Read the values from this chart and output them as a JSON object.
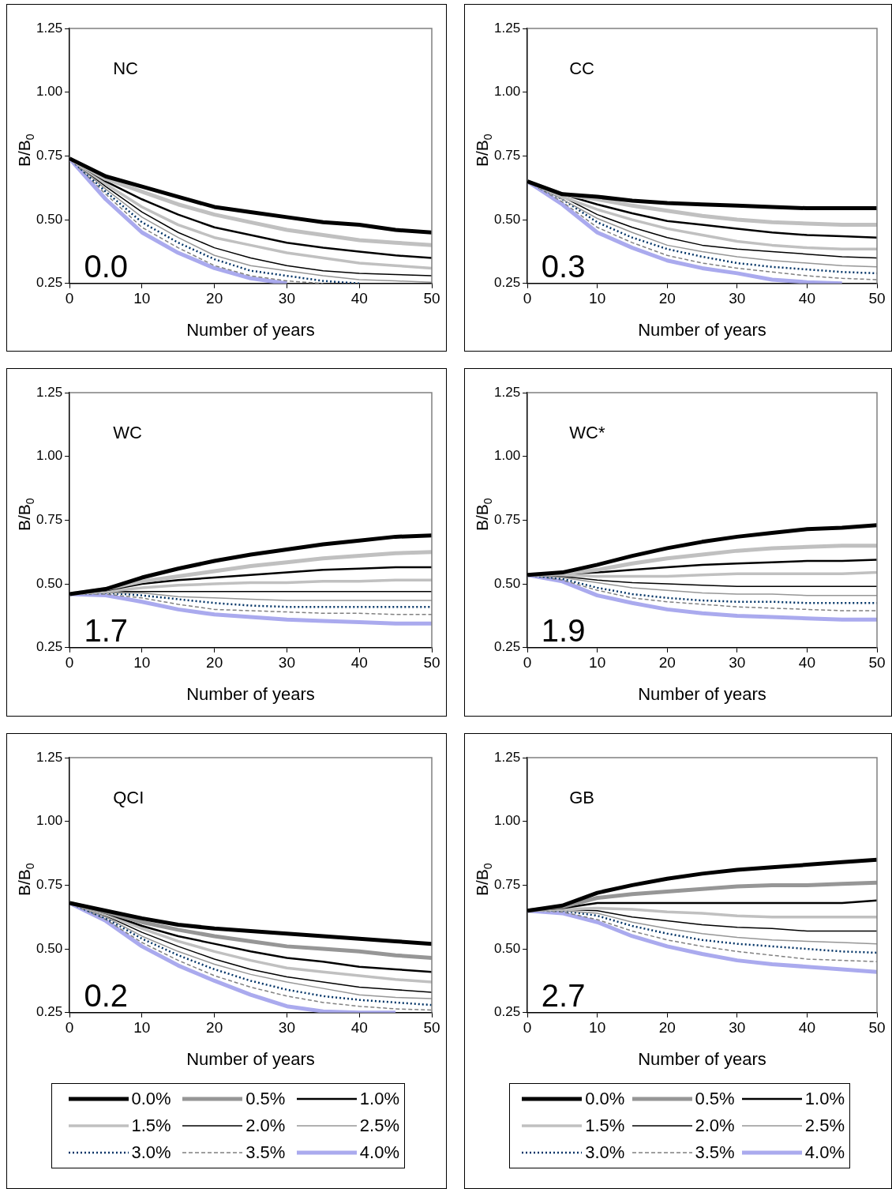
{
  "chart_data": [
    {
      "type": "line",
      "xlabel": "Number of years",
      "ylabel": "B/B$_{0}$",
      "annotations": [
        "NC",
        "0.0"
      ],
      "x": [
        0,
        5,
        10,
        15,
        20,
        25,
        30,
        35,
        40,
        45,
        50
      ],
      "xlim": [
        0,
        50
      ],
      "xticks": [
        0,
        10,
        20,
        30,
        40,
        50
      ],
      "ylim": [
        0.25,
        1.25
      ],
      "yticks": [
        {
          "value": 0.25,
          "label": "0.25"
        },
        {
          "value": 0.5,
          "label": "0.50"
        },
        {
          "value": 0.75,
          "label": "0.75"
        },
        {
          "value": 1,
          "label": "1.00"
        },
        {
          "value": 1.25,
          "label": "1.25"
        }
      ],
      "legend": false,
      "series": [
        {
          "color": "#000000",
          "values": [
            0.74,
            0.67,
            0.63,
            0.59,
            0.55,
            0.53,
            0.51,
            0.49,
            0.48,
            0.46,
            0.45
          ]
        },
        {
          "color": "#c0c0c0",
          "values": [
            0.74,
            0.66,
            0.61,
            0.56,
            0.52,
            0.49,
            0.46,
            0.44,
            0.42,
            0.41,
            0.4
          ]
        },
        {
          "color": "#000000",
          "values": [
            0.74,
            0.65,
            0.58,
            0.52,
            0.47,
            0.44,
            0.41,
            0.39,
            0.375,
            0.36,
            0.35
          ]
        },
        {
          "color": "#c0c0c0",
          "values": [
            0.74,
            0.64,
            0.55,
            0.48,
            0.43,
            0.4,
            0.37,
            0.35,
            0.33,
            0.32,
            0.31
          ]
        },
        {
          "color": "#000000",
          "values": [
            0.74,
            0.63,
            0.53,
            0.45,
            0.39,
            0.35,
            0.32,
            0.3,
            0.29,
            0.285,
            0.28
          ]
        },
        {
          "color": "#969696",
          "values": [
            0.74,
            0.62,
            0.51,
            0.43,
            0.36,
            0.32,
            0.3,
            0.28,
            0.265,
            0.26,
            0.255
          ]
        },
        {
          "color": "#003366",
          "line_style": "dotted",
          "values": [
            0.74,
            0.61,
            0.49,
            0.41,
            0.345,
            0.3,
            0.28,
            0.26,
            0.25,
            null,
            null
          ]
        },
        {
          "color": "#808080",
          "line_style": "dashed",
          "values": [
            0.74,
            0.6,
            0.47,
            0.39,
            0.32,
            0.28,
            0.26,
            0.25,
            null,
            null,
            null
          ]
        },
        {
          "color": "#aaaaee",
          "values": [
            0.74,
            0.58,
            0.45,
            0.37,
            0.31,
            0.27,
            0.25,
            null,
            null,
            null,
            null
          ]
        }
      ]
    },
    {
      "type": "line",
      "xlabel": "Number of years",
      "ylabel": "B/B$_{0}$",
      "annotations": [
        "CC",
        "0.3"
      ],
      "x": [
        0,
        5,
        10,
        15,
        20,
        25,
        30,
        35,
        40,
        45,
        50
      ],
      "xlim": [
        0,
        50
      ],
      "xticks": [
        0,
        10,
        20,
        30,
        40,
        50
      ],
      "ylim": [
        0.25,
        1.25
      ],
      "yticks": [
        {
          "value": 0.25,
          "label": "0.25"
        },
        {
          "value": 0.5,
          "label": "0.50"
        },
        {
          "value": 0.75,
          "label": "0.75"
        },
        {
          "value": 1,
          "label": "1.00"
        },
        {
          "value": 1.25,
          "label": "1.25"
        }
      ],
      "legend": false,
      "series": [
        {
          "color": "#000000",
          "values": [
            0.65,
            0.6,
            0.59,
            0.575,
            0.565,
            0.56,
            0.555,
            0.55,
            0.545,
            0.545,
            0.545
          ]
        },
        {
          "color": "#c0c0c0",
          "values": [
            0.65,
            0.6,
            0.58,
            0.555,
            0.535,
            0.515,
            0.5,
            0.49,
            0.485,
            0.48,
            0.48
          ]
        },
        {
          "color": "#000000",
          "values": [
            0.65,
            0.6,
            0.56,
            0.525,
            0.495,
            0.48,
            0.465,
            0.45,
            0.44,
            0.435,
            0.43
          ]
        },
        {
          "color": "#c0c0c0",
          "values": [
            0.65,
            0.59,
            0.54,
            0.5,
            0.465,
            0.44,
            0.415,
            0.4,
            0.39,
            0.385,
            0.385
          ]
        },
        {
          "color": "#000000",
          "values": [
            0.65,
            0.59,
            0.52,
            0.47,
            0.43,
            0.4,
            0.385,
            0.375,
            0.365,
            0.355,
            0.35
          ]
        },
        {
          "color": "#969696",
          "values": [
            0.65,
            0.58,
            0.505,
            0.45,
            0.4,
            0.375,
            0.355,
            0.34,
            0.33,
            0.32,
            0.315
          ]
        },
        {
          "color": "#003366",
          "line_style": "dotted",
          "values": [
            0.65,
            0.58,
            0.49,
            0.43,
            0.385,
            0.355,
            0.33,
            0.315,
            0.305,
            0.295,
            0.29
          ]
        },
        {
          "color": "#808080",
          "line_style": "dashed",
          "values": [
            0.65,
            0.57,
            0.47,
            0.41,
            0.36,
            0.33,
            0.31,
            0.295,
            0.28,
            0.27,
            0.265
          ]
        },
        {
          "color": "#aaaaee",
          "values": [
            0.65,
            0.56,
            0.45,
            0.39,
            0.34,
            0.31,
            0.29,
            0.265,
            0.255,
            0.25,
            null
          ]
        }
      ]
    },
    {
      "type": "line",
      "xlabel": "Number of years",
      "ylabel": "B/B$_{0}$",
      "annotations": [
        "WC",
        "1.7"
      ],
      "x": [
        0,
        5,
        10,
        15,
        20,
        25,
        30,
        35,
        40,
        45,
        50
      ],
      "xlim": [
        0,
        50
      ],
      "xticks": [
        0,
        10,
        20,
        30,
        40,
        50
      ],
      "ylim": [
        0.25,
        1.25
      ],
      "yticks": [
        {
          "value": 0.25,
          "label": "0.25"
        },
        {
          "value": 0.5,
          "label": "0.50"
        },
        {
          "value": 0.75,
          "label": "0.75"
        },
        {
          "value": 1,
          "label": "1.00"
        },
        {
          "value": 1.25,
          "label": "1.25"
        }
      ],
      "legend": false,
      "series": [
        {
          "color": "#000000",
          "values": [
            0.46,
            0.48,
            0.525,
            0.56,
            0.59,
            0.615,
            0.635,
            0.655,
            0.67,
            0.685,
            0.69
          ]
        },
        {
          "color": "#c0c0c0",
          "values": [
            0.46,
            0.48,
            0.51,
            0.53,
            0.55,
            0.57,
            0.585,
            0.6,
            0.61,
            0.62,
            0.625
          ]
        },
        {
          "color": "#000000",
          "values": [
            0.46,
            0.475,
            0.5,
            0.515,
            0.525,
            0.535,
            0.545,
            0.555,
            0.56,
            0.565,
            0.565
          ]
        },
        {
          "color": "#c0c0c0",
          "values": [
            0.46,
            0.47,
            0.485,
            0.495,
            0.5,
            0.505,
            0.505,
            0.51,
            0.51,
            0.515,
            0.515
          ]
        },
        {
          "color": "#000000",
          "values": [
            0.46,
            0.47,
            0.47,
            0.47,
            0.47,
            0.47,
            0.47,
            0.47,
            0.47,
            0.47,
            0.47
          ]
        },
        {
          "color": "#969696",
          "values": [
            0.46,
            0.465,
            0.465,
            0.45,
            0.445,
            0.44,
            0.435,
            0.435,
            0.435,
            0.435,
            0.435
          ]
        },
        {
          "color": "#003366",
          "line_style": "dotted",
          "values": [
            0.46,
            0.465,
            0.455,
            0.44,
            0.425,
            0.415,
            0.41,
            0.41,
            0.41,
            0.41,
            0.41
          ]
        },
        {
          "color": "#808080",
          "line_style": "dashed",
          "values": [
            0.46,
            0.46,
            0.445,
            0.42,
            0.4,
            0.395,
            0.39,
            0.385,
            0.385,
            0.38,
            0.38
          ]
        },
        {
          "color": "#aaaaee",
          "values": [
            0.46,
            0.455,
            0.43,
            0.4,
            0.38,
            0.37,
            0.36,
            0.355,
            0.35,
            0.345,
            0.345
          ]
        }
      ]
    },
    {
      "type": "line",
      "xlabel": "Number of years",
      "ylabel": "B/B$_{0}$",
      "annotations": [
        "WC*",
        "1.9"
      ],
      "x": [
        0,
        5,
        10,
        15,
        20,
        25,
        30,
        35,
        40,
        45,
        50
      ],
      "xlim": [
        0,
        50
      ],
      "xticks": [
        0,
        10,
        20,
        30,
        40,
        50
      ],
      "ylim": [
        0.25,
        1.25
      ],
      "yticks": [
        {
          "value": 0.25,
          "label": "0.25"
        },
        {
          "value": 0.5,
          "label": "0.50"
        },
        {
          "value": 0.75,
          "label": "0.75"
        },
        {
          "value": 1,
          "label": "1.00"
        },
        {
          "value": 1.25,
          "label": "1.25"
        }
      ],
      "legend": false,
      "series": [
        {
          "color": "#000000",
          "values": [
            0.535,
            0.545,
            0.575,
            0.61,
            0.64,
            0.665,
            0.685,
            0.7,
            0.715,
            0.72,
            0.73
          ]
        },
        {
          "color": "#c0c0c0",
          "values": [
            0.535,
            0.54,
            0.555,
            0.58,
            0.6,
            0.615,
            0.63,
            0.64,
            0.645,
            0.65,
            0.65
          ]
        },
        {
          "color": "#000000",
          "values": [
            0.535,
            0.54,
            0.545,
            0.555,
            0.565,
            0.575,
            0.58,
            0.585,
            0.59,
            0.59,
            0.595
          ]
        },
        {
          "color": "#c0c0c0",
          "values": [
            0.535,
            0.535,
            0.53,
            0.53,
            0.53,
            0.535,
            0.54,
            0.54,
            0.54,
            0.54,
            0.545
          ]
        },
        {
          "color": "#000000",
          "values": [
            0.535,
            0.53,
            0.515,
            0.505,
            0.5,
            0.495,
            0.49,
            0.49,
            0.49,
            0.49,
            0.49
          ]
        },
        {
          "color": "#969696",
          "values": [
            0.535,
            0.525,
            0.505,
            0.485,
            0.475,
            0.465,
            0.46,
            0.46,
            0.455,
            0.455,
            0.455
          ]
        },
        {
          "color": "#003366",
          "line_style": "dotted",
          "values": [
            0.535,
            0.52,
            0.485,
            0.46,
            0.445,
            0.435,
            0.43,
            0.43,
            0.425,
            0.425,
            0.425
          ]
        },
        {
          "color": "#808080",
          "line_style": "dashed",
          "values": [
            0.535,
            0.515,
            0.475,
            0.445,
            0.43,
            0.42,
            0.41,
            0.405,
            0.4,
            0.395,
            0.395
          ]
        },
        {
          "color": "#aaaaee",
          "values": [
            0.535,
            0.51,
            0.455,
            0.425,
            0.4,
            0.385,
            0.375,
            0.37,
            0.365,
            0.36,
            0.36
          ]
        }
      ]
    },
    {
      "type": "line",
      "xlabel": "Number of years",
      "ylabel": "B/B$_{0}$",
      "annotations": [
        "QCI",
        "0.2"
      ],
      "x": [
        0,
        5,
        10,
        15,
        20,
        25,
        30,
        35,
        40,
        45,
        50
      ],
      "xlim": [
        0,
        50
      ],
      "xticks": [
        0,
        10,
        20,
        30,
        40,
        50
      ],
      "ylim": [
        0.25,
        1.25
      ],
      "yticks": [
        {
          "value": 0.25,
          "label": "0.25"
        },
        {
          "value": 0.5,
          "label": "0.50"
        },
        {
          "value": 0.75,
          "label": "0.75"
        },
        {
          "value": 1,
          "label": "1.00"
        },
        {
          "value": 1.25,
          "label": "1.25"
        }
      ],
      "legend": "bottom",
      "series": [
        {
          "name": "0.0%",
          "color": "#000000",
          "values": [
            0.68,
            0.65,
            0.62,
            0.595,
            0.58,
            0.57,
            0.56,
            0.55,
            0.54,
            0.53,
            0.52
          ]
        },
        {
          "name": "0.5%",
          "color": "#969696",
          "values": [
            0.68,
            0.645,
            0.605,
            0.575,
            0.55,
            0.53,
            0.51,
            0.5,
            0.49,
            0.475,
            0.465
          ]
        },
        {
          "name": "1.0%",
          "color": "#000000",
          "values": [
            0.68,
            0.64,
            0.59,
            0.55,
            0.52,
            0.49,
            0.465,
            0.45,
            0.43,
            0.42,
            0.41
          ]
        },
        {
          "name": "1.5%",
          "color": "#c0c0c0",
          "values": [
            0.68,
            0.635,
            0.58,
            0.53,
            0.49,
            0.455,
            0.425,
            0.41,
            0.395,
            0.38,
            0.37
          ]
        },
        {
          "name": "2.0%",
          "color": "#000000",
          "values": [
            0.68,
            0.63,
            0.565,
            0.51,
            0.46,
            0.42,
            0.39,
            0.37,
            0.35,
            0.34,
            0.33
          ]
        },
        {
          "name": "2.5%",
          "color": "#969696",
          "values": [
            0.68,
            0.625,
            0.55,
            0.49,
            0.44,
            0.4,
            0.37,
            0.345,
            0.32,
            0.31,
            0.305
          ]
        },
        {
          "name": "3.0%",
          "color": "#003366",
          "line_style": "dotted",
          "values": [
            0.68,
            0.62,
            0.54,
            0.475,
            0.42,
            0.375,
            0.34,
            0.315,
            0.3,
            0.29,
            0.28
          ]
        },
        {
          "name": "3.5%",
          "color": "#808080",
          "line_style": "dashed",
          "values": [
            0.68,
            0.615,
            0.525,
            0.455,
            0.395,
            0.35,
            0.315,
            0.29,
            0.275,
            0.265,
            0.26
          ]
        },
        {
          "name": "4.0%",
          "color": "#aaaaee",
          "values": [
            0.68,
            0.61,
            0.51,
            0.435,
            0.375,
            0.32,
            0.275,
            0.255,
            0.25,
            0.25,
            null
          ]
        }
      ]
    },
    {
      "type": "line",
      "xlabel": "Number of years",
      "ylabel": "B/B$_{0}$",
      "annotations": [
        "GB",
        "2.7"
      ],
      "x": [
        0,
        5,
        10,
        15,
        20,
        25,
        30,
        35,
        40,
        45,
        50
      ],
      "xlim": [
        0,
        50
      ],
      "xticks": [
        0,
        10,
        20,
        30,
        40,
        50
      ],
      "ylim": [
        0.25,
        1.25
      ],
      "yticks": [
        {
          "value": 0.25,
          "label": "0.25"
        },
        {
          "value": 0.5,
          "label": "0.50"
        },
        {
          "value": 0.75,
          "label": "0.75"
        },
        {
          "value": 1,
          "label": "1.00"
        },
        {
          "value": 1.25,
          "label": "1.25"
        }
      ],
      "legend": "bottom",
      "series": [
        {
          "name": "0.0%",
          "color": "#000000",
          "values": [
            0.65,
            0.67,
            0.72,
            0.75,
            0.775,
            0.795,
            0.81,
            0.82,
            0.83,
            0.84,
            0.85
          ]
        },
        {
          "name": "0.5%",
          "color": "#969696",
          "values": [
            0.65,
            0.665,
            0.7,
            0.715,
            0.725,
            0.735,
            0.745,
            0.75,
            0.75,
            0.755,
            0.76
          ]
        },
        {
          "name": "1.0%",
          "color": "#000000",
          "values": [
            0.65,
            0.66,
            0.68,
            0.68,
            0.68,
            0.68,
            0.68,
            0.68,
            0.68,
            0.68,
            0.69
          ]
        },
        {
          "name": "1.5%",
          "color": "#c0c0c0",
          "values": [
            0.65,
            0.655,
            0.66,
            0.655,
            0.645,
            0.64,
            0.63,
            0.625,
            0.625,
            0.625,
            0.625
          ]
        },
        {
          "name": "2.0%",
          "color": "#000000",
          "values": [
            0.65,
            0.655,
            0.65,
            0.625,
            0.61,
            0.595,
            0.585,
            0.58,
            0.57,
            0.57,
            0.57
          ]
        },
        {
          "name": "2.5%",
          "color": "#969696",
          "values": [
            0.65,
            0.65,
            0.64,
            0.605,
            0.58,
            0.56,
            0.545,
            0.535,
            0.53,
            0.525,
            0.52
          ]
        },
        {
          "name": "3.0%",
          "color": "#003366",
          "line_style": "dotted",
          "values": [
            0.65,
            0.65,
            0.63,
            0.59,
            0.56,
            0.535,
            0.52,
            0.51,
            0.5,
            0.49,
            0.485
          ]
        },
        {
          "name": "3.5%",
          "color": "#808080",
          "line_style": "dashed",
          "values": [
            0.65,
            0.645,
            0.615,
            0.57,
            0.535,
            0.51,
            0.49,
            0.475,
            0.46,
            0.455,
            0.45
          ]
        },
        {
          "name": "4.0%",
          "color": "#aaaaee",
          "values": [
            0.65,
            0.64,
            0.605,
            0.55,
            0.51,
            0.48,
            0.455,
            0.44,
            0.43,
            0.42,
            0.41
          ]
        }
      ]
    }
  ]
}
